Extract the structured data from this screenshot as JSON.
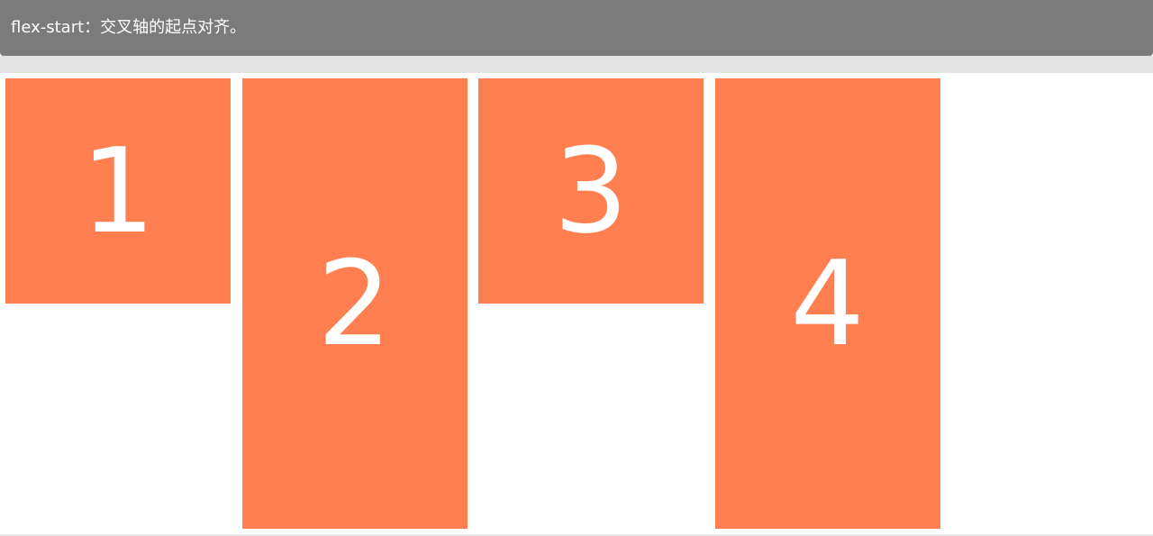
{
  "header": {
    "property": "flex-start",
    "separator": "：",
    "description": "交叉轴的起点对齐。"
  },
  "colors": {
    "header_bg": "#7b7b7b",
    "item_bg": "#ff7f50",
    "band_bg": "#e3e3e3"
  },
  "items": [
    {
      "label": "1"
    },
    {
      "label": "2"
    },
    {
      "label": "3"
    },
    {
      "label": "4"
    }
  ]
}
